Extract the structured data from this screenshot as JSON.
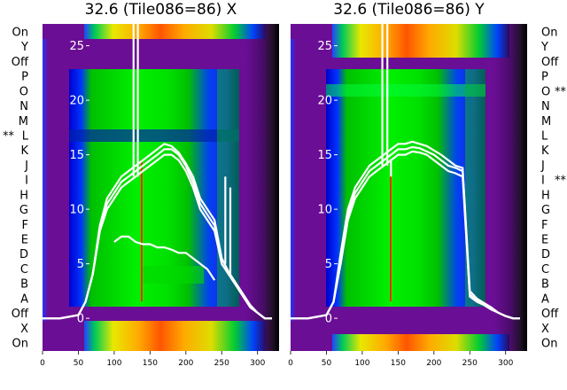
{
  "chart_data": [
    {
      "type": "heatmap",
      "title": "32.6 (Tile086=86) X",
      "xlim": [
        0,
        330
      ],
      "xticks": [
        "0",
        "50",
        "100",
        "150",
        "200",
        "250",
        "300"
      ],
      "ylim": [
        -3,
        27
      ],
      "yticks": [
        "0",
        "5",
        "10",
        "15",
        "20",
        "25"
      ],
      "row_labels": [
        "On",
        "Y",
        "Off",
        "P",
        "O",
        "N",
        "M",
        "L",
        "K",
        "J",
        "I",
        "H",
        "G",
        "F",
        "E",
        "D",
        "C",
        "B",
        "A",
        "Off",
        "X",
        "On"
      ],
      "marker": {
        "text": "**",
        "row": "L"
      },
      "overlay_lines": [
        {
          "x": [
            0,
            25,
            50,
            60,
            70,
            80,
            90,
            100,
            110,
            120,
            130,
            140,
            150,
            160,
            170,
            180,
            190,
            200,
            210,
            220,
            230,
            240,
            250,
            260,
            270,
            280,
            290,
            300,
            310,
            320
          ],
          "y": [
            0,
            0,
            0.3,
            1.5,
            4,
            8,
            10,
            11,
            12,
            12.5,
            13,
            13.5,
            14,
            14.5,
            15,
            15,
            14.5,
            13.5,
            12,
            10,
            9,
            8,
            5,
            4,
            3,
            2,
            1,
            0.5,
            0,
            0
          ]
        },
        {
          "x": [
            0,
            25,
            50,
            60,
            70,
            80,
            90,
            100,
            110,
            120,
            130,
            140,
            150,
            160,
            170,
            180,
            190,
            200,
            210,
            220,
            230,
            240,
            250,
            260,
            270,
            280,
            290,
            300,
            310,
            320
          ],
          "y": [
            0,
            0,
            0.3,
            1.5,
            4,
            8,
            10.5,
            11.5,
            12.5,
            13,
            13.5,
            14,
            14.5,
            15,
            15.5,
            15.5,
            15,
            14,
            12.5,
            10.5,
            9.5,
            8.5,
            5,
            4,
            3,
            2,
            1,
            0.5,
            0,
            0
          ]
        },
        {
          "x": [
            0,
            25,
            50,
            60,
            70,
            80,
            90,
            100,
            110,
            120,
            130,
            140,
            150,
            160,
            170,
            180,
            190,
            200,
            210,
            220,
            230,
            240,
            250,
            260,
            270,
            280,
            290,
            300,
            310,
            320
          ],
          "y": [
            0,
            0,
            0.3,
            1.5,
            4,
            8.5,
            11,
            12,
            13,
            13.5,
            14,
            14.5,
            15,
            15.5,
            16,
            15.8,
            15.2,
            14.2,
            13,
            11,
            10,
            9,
            5.5,
            4.2,
            3.2,
            2.2,
            1.2,
            0.5,
            0,
            0
          ]
        },
        {
          "x": [
            100,
            110,
            120,
            130,
            140,
            150,
            160,
            170,
            180,
            190,
            200,
            210,
            220,
            230,
            240
          ],
          "y": [
            7,
            7.5,
            7.5,
            7,
            6.8,
            6.8,
            6.5,
            6.5,
            6.3,
            6,
            6,
            5.5,
            5,
            4.5,
            3.5
          ]
        }
      ],
      "spikes": [
        {
          "x": 127,
          "to": 27
        },
        {
          "x": 133,
          "to": 27
        },
        {
          "x": 255,
          "to": 13
        },
        {
          "x": 262,
          "to": 12
        }
      ]
    },
    {
      "type": "heatmap",
      "title": "32.6 (Tile086=86) Y",
      "xlim": [
        0,
        330
      ],
      "xticks": [
        "0",
        "50",
        "100",
        "150",
        "200",
        "250",
        "300"
      ],
      "ylim": [
        -3,
        27
      ],
      "yticks": [
        "0",
        "5",
        "10",
        "15",
        "20",
        "25"
      ],
      "row_labels": [
        "On",
        "Y",
        "Off",
        "P",
        "O",
        "N",
        "M",
        "L",
        "K",
        "J",
        "I",
        "H",
        "G",
        "F",
        "E",
        "D",
        "C",
        "B",
        "A",
        "Off",
        "X",
        "On"
      ],
      "markers": [
        {
          "text": "**",
          "row": "O"
        },
        {
          "text": "**",
          "row": "I"
        }
      ],
      "overlay_lines": [
        {
          "x": [
            0,
            25,
            50,
            60,
            70,
            80,
            90,
            100,
            110,
            120,
            130,
            140,
            150,
            160,
            170,
            180,
            190,
            200,
            210,
            220,
            230,
            240,
            250,
            260,
            270,
            280,
            290,
            300,
            310,
            320
          ],
          "y": [
            0,
            0,
            0.3,
            1.5,
            5,
            9,
            11,
            12,
            13,
            13.5,
            14,
            14.5,
            15,
            15,
            15.3,
            15.2,
            15,
            14.5,
            14,
            13.5,
            13.3,
            13,
            2,
            1.5,
            1.2,
            0.8,
            0.5,
            0.2,
            0,
            0
          ]
        },
        {
          "x": [
            0,
            25,
            50,
            60,
            70,
            80,
            90,
            100,
            110,
            120,
            130,
            140,
            150,
            160,
            170,
            180,
            190,
            200,
            210,
            220,
            230,
            240,
            250,
            260,
            270,
            280,
            290,
            300,
            310,
            320
          ],
          "y": [
            0,
            0,
            0.3,
            1.5,
            5.5,
            9.5,
            11.5,
            12.5,
            13.5,
            14,
            14.5,
            15,
            15.5,
            15.5,
            15.7,
            15.6,
            15.3,
            15,
            14.5,
            14,
            13.8,
            13.5,
            2.2,
            1.6,
            1.3,
            0.9,
            0.5,
            0.2,
            0,
            0
          ]
        },
        {
          "x": [
            0,
            25,
            50,
            60,
            70,
            80,
            90,
            100,
            110,
            120,
            130,
            140,
            150,
            160,
            170,
            180,
            190,
            200,
            210,
            220,
            230,
            240,
            250,
            260,
            270,
            280,
            290,
            300,
            310,
            320
          ],
          "y": [
            0,
            0,
            0.3,
            1.5,
            6,
            10,
            12,
            13,
            14,
            14.5,
            15,
            15.5,
            16,
            16,
            16.2,
            16,
            15.8,
            15.4,
            15,
            14.5,
            14,
            13.8,
            2.5,
            1.8,
            1.4,
            1,
            0.5,
            0.2,
            0,
            0
          ]
        }
      ],
      "spikes": [
        {
          "x": 128,
          "to": 27
        },
        {
          "x": 135,
          "to": 27
        },
        {
          "x": 140,
          "to": 13
        }
      ]
    }
  ]
}
